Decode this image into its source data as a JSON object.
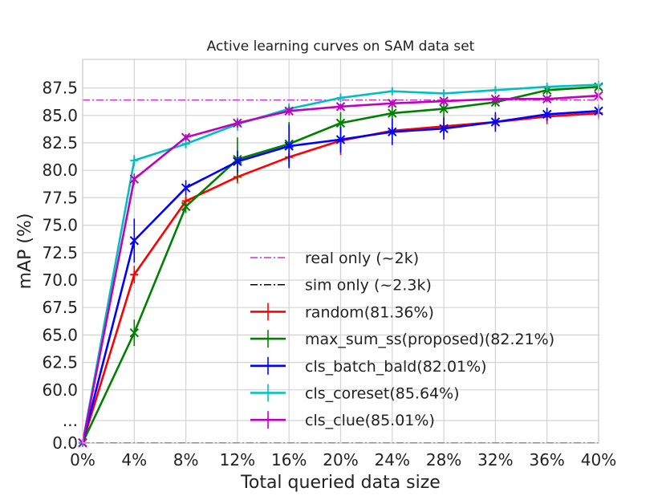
{
  "chart_data": {
    "type": "line",
    "title": "Active learning curves on SAM data set",
    "xlabel": "Total queried data size",
    "ylabel": "mAP (%)",
    "x": [
      0,
      4,
      8,
      12,
      16,
      20,
      24,
      28,
      32,
      36,
      40
    ],
    "x_tick_labels": [
      "0%",
      "4%",
      "8%",
      "12%",
      "16%",
      "20%",
      "24%",
      "28%",
      "32%",
      "36%",
      "40%"
    ],
    "xlim": [
      0,
      40
    ],
    "y_tick_labels": [
      "0.0",
      "...",
      "60.0",
      "62.5",
      "65.0",
      "67.5",
      "70.0",
      "72.5",
      "75.0",
      "77.5",
      "80.0",
      "82.5",
      "85.0",
      "87.5"
    ],
    "ylim_upper_segment": [
      57.5,
      90
    ],
    "y_axis_note": "Broken axis: bottom region spans 0.0 to 57.5 compressed",
    "grid": true,
    "legend_position": "lower-right",
    "reference_lines": [
      {
        "name": "real only (~2k)",
        "value": 86.4,
        "color": "#cc33cc",
        "style": "dashdot"
      },
      {
        "name": "sim only (~2.3k)",
        "value": 0.3,
        "color": "#000000",
        "style": "dashdot"
      }
    ],
    "series": [
      {
        "name": "random(81.36%)",
        "color": "#ff0000",
        "marker": "plus",
        "values": [
          0.5,
          70.5,
          77.2,
          79.4,
          81.2,
          82.7,
          83.6,
          84.0,
          84.4,
          84.9,
          85.2
        ],
        "errors": [
          0.5,
          0.8,
          0.5,
          0.6,
          0.9,
          1.3,
          0.9,
          0.9,
          0.7,
          0.7,
          0.6
        ]
      },
      {
        "name": "max_sum_ss(proposed)(82.21%)",
        "color": "#008000",
        "marker": "x",
        "values": [
          0.5,
          65.2,
          76.7,
          81.0,
          82.4,
          84.3,
          85.2,
          85.6,
          86.2,
          87.3,
          87.6
        ],
        "errors": [
          0.5,
          1.2,
          0.6,
          2.0,
          2.0,
          1.0,
          0.9,
          0.8,
          0.4,
          0.4,
          0.4
        ]
      },
      {
        "name": "cls_batch_bald(82.01%)",
        "color": "#0000ff",
        "marker": "x",
        "values": [
          0.5,
          73.6,
          78.4,
          80.8,
          82.2,
          82.8,
          83.5,
          83.8,
          84.4,
          85.1,
          85.4
        ],
        "errors": [
          0.5,
          2.0,
          0.7,
          1.0,
          2.0,
          1.2,
          1.2,
          1.0,
          0.9,
          0.6,
          0.6
        ]
      },
      {
        "name": "cls_coreset(85.64%)",
        "color": "#00bfbf",
        "marker": "plus",
        "values": [
          0.5,
          80.9,
          82.4,
          84.2,
          85.6,
          86.6,
          87.2,
          87.0,
          87.3,
          87.6,
          87.8
        ],
        "errors": [
          0.5,
          0.5,
          0.4,
          0.6,
          0.5,
          0.4,
          0.3,
          0.3,
          0.3,
          0.3,
          0.3
        ]
      },
      {
        "name": "cls_clue(85.01%)",
        "color": "#bf00bf",
        "marker": "x",
        "values": [
          0.5,
          79.2,
          83.0,
          84.3,
          85.4,
          85.8,
          86.1,
          86.3,
          86.5,
          86.5,
          86.8
        ],
        "errors": [
          0.5,
          0.5,
          0.3,
          0.4,
          0.4,
          0.3,
          0.3,
          0.3,
          0.3,
          0.3,
          0.3
        ]
      }
    ]
  }
}
